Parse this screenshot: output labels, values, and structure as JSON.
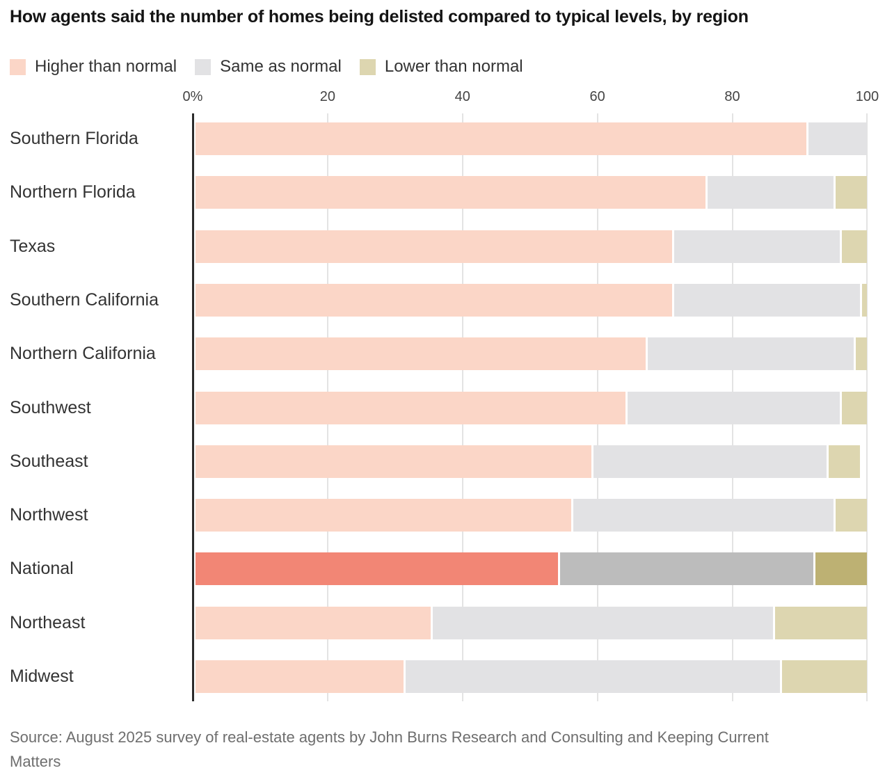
{
  "title": "How agents said the number of homes being delisted compared to typical levels, by region",
  "legend": {
    "items": [
      {
        "label": "Higher than normal",
        "color": "#fbd6c7"
      },
      {
        "label": "Same as normal",
        "color": "#e2e2e4"
      },
      {
        "label": "Lower than normal",
        "color": "#ddd6b0"
      }
    ]
  },
  "axis": {
    "ticks": [
      {
        "label": "0%",
        "value": 0
      },
      {
        "label": "20",
        "value": 20
      },
      {
        "label": "40",
        "value": 40
      },
      {
        "label": "60",
        "value": 60
      },
      {
        "label": "80",
        "value": 80
      },
      {
        "label": "100",
        "value": 100
      }
    ],
    "max": 100
  },
  "chart_data": {
    "type": "bar",
    "stacked": true,
    "orientation": "horizontal",
    "title": "How agents said the number of homes being delisted compared to typical levels, by region",
    "categories": [
      "Southern Florida",
      "Northern Florida",
      "Texas",
      "Southern California",
      "Northern California",
      "Southwest",
      "Southeast",
      "Northwest",
      "National",
      "Northeast",
      "Midwest"
    ],
    "series": [
      {
        "name": "Higher than normal",
        "values": [
          91,
          76,
          71,
          71,
          67,
          64,
          59,
          56,
          54,
          35,
          31
        ]
      },
      {
        "name": "Same as normal",
        "values": [
          9,
          19,
          25,
          28,
          31,
          32,
          35,
          39,
          38,
          51,
          56
        ]
      },
      {
        "name": "Lower than normal",
        "values": [
          0,
          5,
          4,
          1,
          2,
          4,
          5,
          5,
          8,
          14,
          13
        ]
      }
    ],
    "unit": "%",
    "xlim": [
      0,
      100
    ],
    "legend_position": "top",
    "grid": "vertical",
    "highlighted_category": "National"
  },
  "colors": {
    "series": [
      {
        "normal": "#fbd6c7",
        "highlight": "#f28675"
      },
      {
        "normal": "#e2e2e4",
        "highlight": "#bcbcbc"
      },
      {
        "normal": "#ddd6b0",
        "highlight": "#bdb173"
      }
    ],
    "gridline": "#e3e3e3",
    "axis_line": "#2b2b2b",
    "title_text": "#141414",
    "label_text": "#333333",
    "source_text": "#6e6e6e"
  },
  "source": "Source: August 2025 survey of real-estate agents by John Burns Research and Consulting and Keeping Current Matters"
}
